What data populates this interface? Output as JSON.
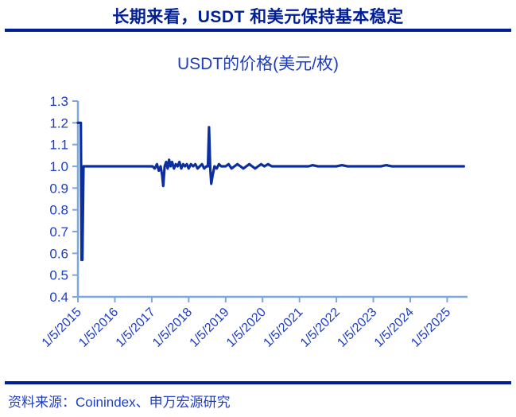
{
  "header": {
    "title": "长期来看，USDT 和美元保持基本稳定"
  },
  "footer": {
    "source": "资料来源：Coinindex、申万宏源研究"
  },
  "colors": {
    "navy": "#001F94",
    "blue": "#1E3EC2",
    "axis": "#7AA7DE",
    "line": "#0B2EA0",
    "background": "#FFFFFF"
  },
  "chart_data": {
    "type": "line",
    "title": "USDT的价格(美元/枚)",
    "xlabel": "",
    "ylabel": "",
    "xlim": [
      2015.0,
      2025.55
    ],
    "ylim": [
      0.4,
      1.3
    ],
    "grid": false,
    "legend": "none",
    "y_ticks": [
      0.4,
      0.5,
      0.6,
      0.7,
      0.8,
      0.9,
      1.0,
      1.1,
      1.2,
      1.3
    ],
    "x_tick_years": [
      2015,
      2016,
      2017,
      2018,
      2019,
      2020,
      2021,
      2022,
      2023,
      2024,
      2025
    ],
    "x_tick_labels": [
      "1/5/2015",
      "1/5/2016",
      "1/5/2017",
      "1/5/2018",
      "1/5/2019",
      "1/5/2020",
      "1/5/2021",
      "1/5/2022",
      "1/5/2023",
      "1/5/2024",
      "1/5/2025"
    ],
    "series": [
      {
        "name": "USDT价格(美元/枚)",
        "points": [
          [
            2015.0,
            1.2
          ],
          [
            2015.08,
            1.2
          ],
          [
            2015.1,
            0.57
          ],
          [
            2015.12,
            0.57
          ],
          [
            2015.15,
            1.0
          ],
          [
            2015.5,
            1.0
          ],
          [
            2016.0,
            1.0
          ],
          [
            2016.5,
            1.0
          ],
          [
            2016.95,
            1.0
          ],
          [
            2017.02,
            1.0
          ],
          [
            2017.08,
            0.99
          ],
          [
            2017.14,
            1.01
          ],
          [
            2017.19,
            0.98
          ],
          [
            2017.24,
            1.0
          ],
          [
            2017.28,
            0.96
          ],
          [
            2017.31,
            0.91
          ],
          [
            2017.35,
            1.0
          ],
          [
            2017.39,
            1.02
          ],
          [
            2017.43,
            0.99
          ],
          [
            2017.47,
            1.03
          ],
          [
            2017.51,
            1.0
          ],
          [
            2017.55,
            1.02
          ],
          [
            2017.6,
            0.99
          ],
          [
            2017.65,
            1.01
          ],
          [
            2017.7,
            1.0
          ],
          [
            2017.75,
            1.02
          ],
          [
            2017.8,
            0.99
          ],
          [
            2017.85,
            1.01
          ],
          [
            2017.9,
            1.0
          ],
          [
            2017.95,
            1.01
          ],
          [
            2018.0,
            0.99
          ],
          [
            2018.06,
            1.01
          ],
          [
            2018.12,
            1.0
          ],
          [
            2018.18,
            1.01
          ],
          [
            2018.24,
            0.99
          ],
          [
            2018.3,
            1.0
          ],
          [
            2018.36,
            1.01
          ],
          [
            2018.42,
            0.99
          ],
          [
            2018.48,
            1.0
          ],
          [
            2018.52,
            1.0
          ],
          [
            2018.55,
            1.18
          ],
          [
            2018.58,
            1.0
          ],
          [
            2018.61,
            0.92
          ],
          [
            2018.65,
            0.96
          ],
          [
            2018.7,
            1.0
          ],
          [
            2018.76,
            0.99
          ],
          [
            2018.82,
            1.01
          ],
          [
            2018.88,
            1.0
          ],
          [
            2018.94,
            1.0
          ],
          [
            2019.0,
            1.0
          ],
          [
            2019.08,
            1.01
          ],
          [
            2019.16,
            0.99
          ],
          [
            2019.24,
            1.0
          ],
          [
            2019.32,
            1.01
          ],
          [
            2019.4,
            1.0
          ],
          [
            2019.48,
            0.99
          ],
          [
            2019.56,
            1.0
          ],
          [
            2019.64,
            1.01
          ],
          [
            2019.72,
            1.0
          ],
          [
            2019.8,
            0.99
          ],
          [
            2019.88,
            1.0
          ],
          [
            2019.96,
            1.01
          ],
          [
            2020.05,
            1.0
          ],
          [
            2020.15,
            1.01
          ],
          [
            2020.25,
            1.0
          ],
          [
            2020.4,
            1.0
          ],
          [
            2020.55,
            1.0
          ],
          [
            2020.7,
            1.0
          ],
          [
            2020.85,
            1.0
          ],
          [
            2021.0,
            1.0
          ],
          [
            2021.25,
            1.0
          ],
          [
            2021.35,
            1.005
          ],
          [
            2021.5,
            1.0
          ],
          [
            2021.75,
            1.0
          ],
          [
            2022.0,
            1.0
          ],
          [
            2022.15,
            1.005
          ],
          [
            2022.3,
            1.0
          ],
          [
            2022.6,
            1.0
          ],
          [
            2022.9,
            1.0
          ],
          [
            2023.2,
            1.0
          ],
          [
            2023.35,
            1.005
          ],
          [
            2023.5,
            1.0
          ],
          [
            2023.8,
            1.0
          ],
          [
            2024.1,
            1.0
          ],
          [
            2024.4,
            1.0
          ],
          [
            2024.7,
            1.0
          ],
          [
            2025.0,
            1.0
          ],
          [
            2025.45,
            1.0
          ]
        ]
      }
    ]
  }
}
